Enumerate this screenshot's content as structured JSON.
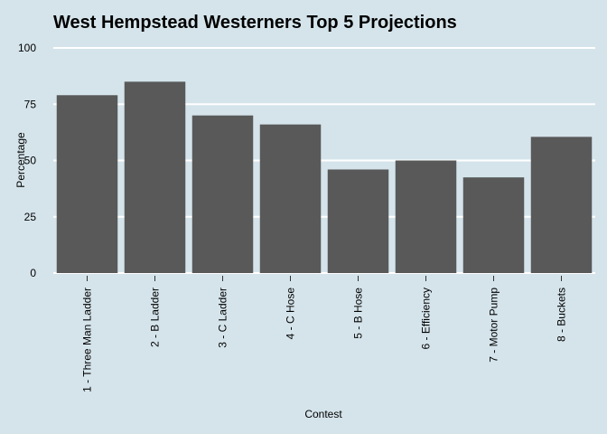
{
  "chart_data": {
    "type": "bar",
    "title": "West Hempstead Westerners Top 5 Projections",
    "xlabel": "Contest",
    "ylabel": "Percentage",
    "categories": [
      "1 - Three Man Ladder",
      "2 - B Ladder",
      "3 - C Ladder",
      "4 - C Hose",
      "5 - B Hose",
      "6 - Efficiency",
      "7 - Motor Pump",
      "8 - Buckets"
    ],
    "values": [
      79,
      85,
      70,
      66,
      46,
      50,
      42.5,
      60.5
    ],
    "ylim": [
      0,
      100
    ],
    "yticks": [
      0,
      25,
      50,
      75,
      100
    ],
    "grid": true,
    "legend": "none",
    "bar_color": "#595959",
    "background_color": "#d5e4eb",
    "grid_color": "#ffffff"
  }
}
